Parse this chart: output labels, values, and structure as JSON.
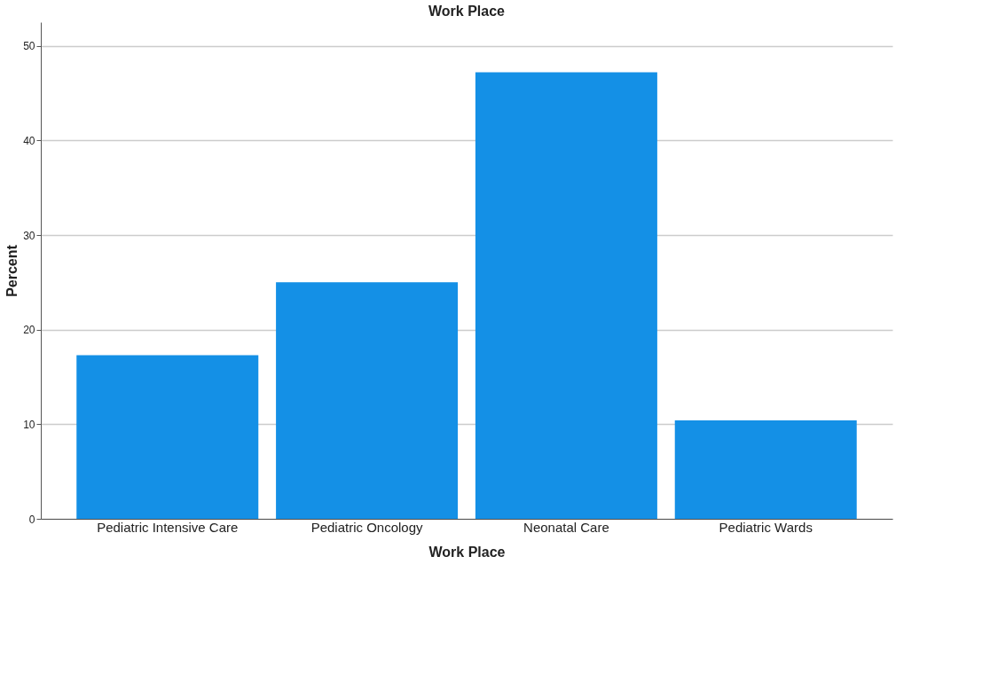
{
  "chart_data": {
    "type": "bar",
    "title": "Work Place",
    "xlabel": "Work Place",
    "ylabel": "Percent",
    "categories": [
      "Pediatric Intensive Care",
      "Pediatric Oncology",
      "Neonatal Care",
      "Pediatric Wards"
    ],
    "values": [
      17.3,
      25.0,
      47.2,
      10.4
    ],
    "color": "#1490e6",
    "ylim": [
      0,
      52.5
    ],
    "yticks": [
      0,
      10,
      20,
      30,
      40,
      50
    ],
    "grid": "y"
  }
}
